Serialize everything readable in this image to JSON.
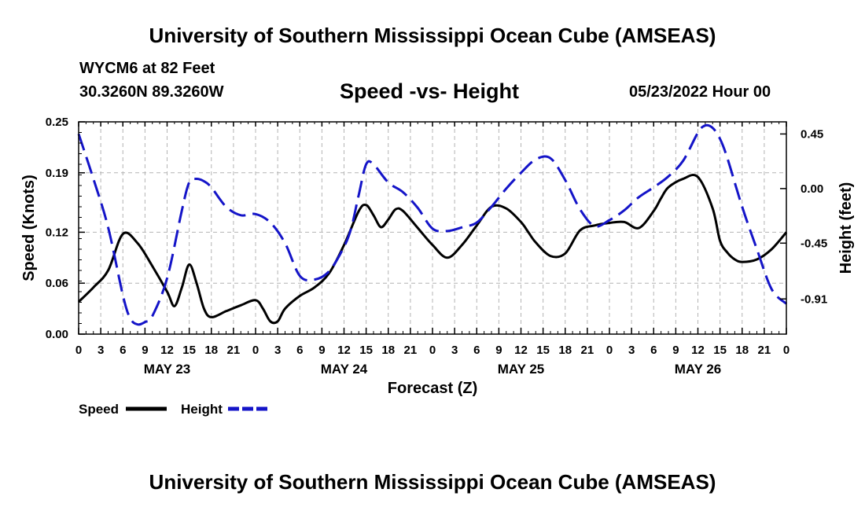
{
  "header": {
    "title": "University of Southern Mississippi Ocean Cube (AMSEAS)",
    "station": "WYCM6 at 82 Feet",
    "coords": "30.3260N  89.3260W",
    "subtitle": "Speed -vs- Height",
    "date": "05/23/2022 Hour 00"
  },
  "footer": {
    "title": "University of Southern Mississippi Ocean Cube (AMSEAS)"
  },
  "chart_data": {
    "type": "line",
    "title": "Speed -vs- Height",
    "xlabel": "Forecast (Z)",
    "ylabel": "Speed (Knots)",
    "ylabel_right": "Height (feet)",
    "x_unit": "forecast hour",
    "xlim": [
      0,
      96
    ],
    "ylim": [
      0,
      0.25
    ],
    "ylim_right": [
      -1.2,
      0.55
    ],
    "grid": true,
    "x_ticks": [
      0,
      3,
      6,
      9,
      12,
      15,
      18,
      21,
      24,
      27,
      30,
      33,
      36,
      39,
      42,
      45,
      48,
      51,
      54,
      57,
      60,
      63,
      66,
      69,
      72,
      75,
      78,
      81,
      84,
      87,
      90,
      93,
      96
    ],
    "x_tick_labels": [
      "0",
      "3",
      "6",
      "9",
      "12",
      "15",
      "18",
      "21",
      "0",
      "3",
      "6",
      "9",
      "12",
      "15",
      "18",
      "21",
      "0",
      "3",
      "6",
      "9",
      "12",
      "15",
      "18",
      "21",
      "0",
      "3",
      "6",
      "9",
      "12",
      "15",
      "18",
      "21",
      "0"
    ],
    "date_labels": [
      {
        "x": 12,
        "label": "MAY 23"
      },
      {
        "x": 36,
        "label": "MAY 24"
      },
      {
        "x": 60,
        "label": "MAY 25"
      },
      {
        "x": 84,
        "label": "MAY 26"
      }
    ],
    "y_ticks_left": [
      0.0,
      0.06,
      0.12,
      0.19,
      0.25
    ],
    "y_tick_labels_left": [
      "0.00",
      "0.06",
      "0.12",
      "0.19",
      "0.25"
    ],
    "y_ticks_right": [
      0.45,
      0.0,
      -0.45,
      -0.91
    ],
    "y_tick_labels_right": [
      "0.45",
      "0.00",
      "-0.45",
      "-0.91"
    ],
    "legend_position": "bottom-left",
    "series": [
      {
        "name": "Speed",
        "axis": "left",
        "color": "#000000",
        "style": "solid",
        "x": [
          0,
          2,
          4,
          6,
          8,
          10,
          12,
          13,
          14,
          15,
          16,
          17,
          18,
          20,
          22,
          24,
          25,
          26,
          27,
          28,
          30,
          32,
          34,
          36,
          38,
          39,
          40,
          41,
          42,
          43,
          44,
          46,
          48,
          50,
          52,
          54,
          56,
          58,
          60,
          61,
          62,
          64,
          66,
          68,
          70,
          72,
          74,
          76,
          78,
          79,
          80,
          82,
          84,
          86,
          87,
          88,
          89,
          90,
          92,
          94,
          96
        ],
        "values": [
          0.038,
          0.055,
          0.075,
          0.118,
          0.107,
          0.08,
          0.05,
          0.033,
          0.055,
          0.082,
          0.06,
          0.03,
          0.02,
          0.027,
          0.034,
          0.04,
          0.03,
          0.015,
          0.015,
          0.03,
          0.045,
          0.055,
          0.072,
          0.105,
          0.145,
          0.152,
          0.14,
          0.126,
          0.135,
          0.147,
          0.145,
          0.125,
          0.105,
          0.09,
          0.105,
          0.128,
          0.15,
          0.148,
          0.132,
          0.12,
          0.108,
          0.092,
          0.095,
          0.122,
          0.128,
          0.131,
          0.132,
          0.125,
          0.145,
          0.16,
          0.173,
          0.183,
          0.185,
          0.148,
          0.11,
          0.096,
          0.088,
          0.085,
          0.088,
          0.1,
          0.12
        ]
      },
      {
        "name": "Height",
        "axis": "right",
        "color": "#1414c8",
        "style": "dashed",
        "x": [
          0,
          2,
          4,
          6,
          7,
          8,
          9,
          10,
          12,
          14,
          15,
          16,
          17,
          18,
          20,
          22,
          24,
          26,
          28,
          30,
          32,
          34,
          36,
          37,
          38,
          39,
          40,
          42,
          44,
          46,
          48,
          50,
          52,
          54,
          56,
          58,
          60,
          62,
          64,
          66,
          68,
          70,
          72,
          74,
          76,
          78,
          80,
          82,
          84,
          85,
          86,
          87,
          88,
          90,
          92,
          94,
          96
        ],
        "values": [
          0.45,
          0.08,
          -0.32,
          -0.88,
          -1.07,
          -1.12,
          -1.1,
          -1.05,
          -0.74,
          -0.18,
          0.05,
          0.08,
          0.06,
          0.01,
          -0.15,
          -0.22,
          -0.21,
          -0.28,
          -0.45,
          -0.72,
          -0.75,
          -0.68,
          -0.48,
          -0.32,
          -0.05,
          0.2,
          0.2,
          0.05,
          -0.03,
          -0.16,
          -0.33,
          -0.35,
          -0.32,
          -0.28,
          -0.15,
          0.0,
          0.13,
          0.24,
          0.25,
          0.07,
          -0.17,
          -0.31,
          -0.26,
          -0.18,
          -0.07,
          0.01,
          0.1,
          0.23,
          0.46,
          0.52,
          0.5,
          0.41,
          0.25,
          -0.15,
          -0.5,
          -0.83,
          -0.95
        ]
      }
    ]
  }
}
